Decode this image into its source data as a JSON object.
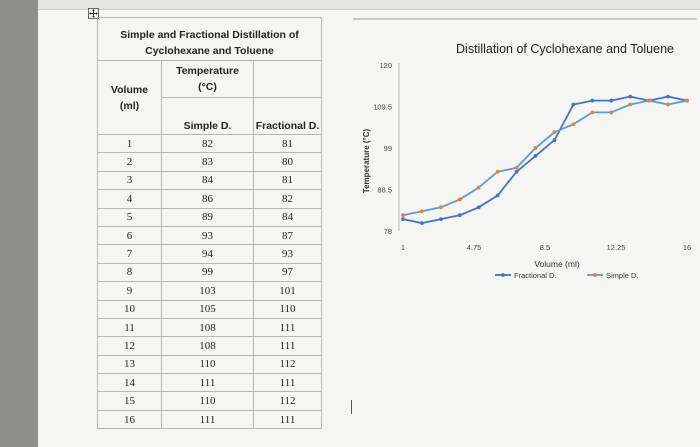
{
  "table": {
    "title": "Simple and Fractional Distillation of Cyclohexane and Toluene",
    "col_volume": "Volume",
    "col_volume_unit": "(ml)",
    "col_temperature": "Temperature",
    "col_temperature_unit": "(°C)",
    "col_simple": "Simple D.",
    "col_fractional": "Fractional D.",
    "rows": [
      {
        "volume": "1",
        "simple": "82",
        "fractional": "81"
      },
      {
        "volume": "2",
        "simple": "83",
        "fractional": "80"
      },
      {
        "volume": "3",
        "simple": "84",
        "fractional": "81"
      },
      {
        "volume": "4",
        "simple": "86",
        "fractional": "82"
      },
      {
        "volume": "5",
        "simple": "89",
        "fractional": "84"
      },
      {
        "volume": "6",
        "simple": "93",
        "fractional": "87"
      },
      {
        "volume": "7",
        "simple": "94",
        "fractional": "93"
      },
      {
        "volume": "8",
        "simple": "99",
        "fractional": "97"
      },
      {
        "volume": "9",
        "simple": "103",
        "fractional": "101"
      },
      {
        "volume": "10",
        "simple": "105",
        "fractional": "110"
      },
      {
        "volume": "11",
        "simple": "108",
        "fractional": "111"
      },
      {
        "volume": "12",
        "simple": "108",
        "fractional": "111"
      },
      {
        "volume": "13",
        "simple": "110",
        "fractional": "112"
      },
      {
        "volume": "14",
        "simple": "111",
        "fractional": "111"
      },
      {
        "volume": "15",
        "simple": "110",
        "fractional": "112"
      },
      {
        "volume": "16",
        "simple": "111",
        "fractional": "111"
      }
    ]
  },
  "chart_data": {
    "type": "line",
    "title": "Distillation of Cyclohexane and Toluene",
    "xlabel": "Volume (ml)",
    "ylabel": "Temperature (°C)",
    "xlim": [
      1,
      16
    ],
    "ylim": [
      78,
      120
    ],
    "x_ticks": [
      "1",
      "4.75",
      "8.5",
      "12.25",
      "16"
    ],
    "y_ticks": [
      "78",
      "88.5",
      "99",
      "109.5",
      "120"
    ],
    "x": [
      1,
      2,
      3,
      4,
      5,
      6,
      7,
      8,
      9,
      10,
      11,
      12,
      13,
      14,
      15,
      16
    ],
    "series": [
      {
        "name": "Fractional D.",
        "color": "#4472c4",
        "marker_color": "#4472c4",
        "values": [
          81,
          80,
          81,
          82,
          84,
          87,
          93,
          97,
          101,
          110,
          111,
          111,
          112,
          111,
          112,
          111
        ]
      },
      {
        "name": "Simple D.",
        "color": "#5b9bd5",
        "marker_color": "#ed7d31",
        "values": [
          82,
          83,
          84,
          86,
          89,
          93,
          94,
          99,
          103,
          105,
          108,
          108,
          110,
          111,
          110,
          111
        ]
      }
    ],
    "grid": false,
    "legend": "bottom"
  }
}
